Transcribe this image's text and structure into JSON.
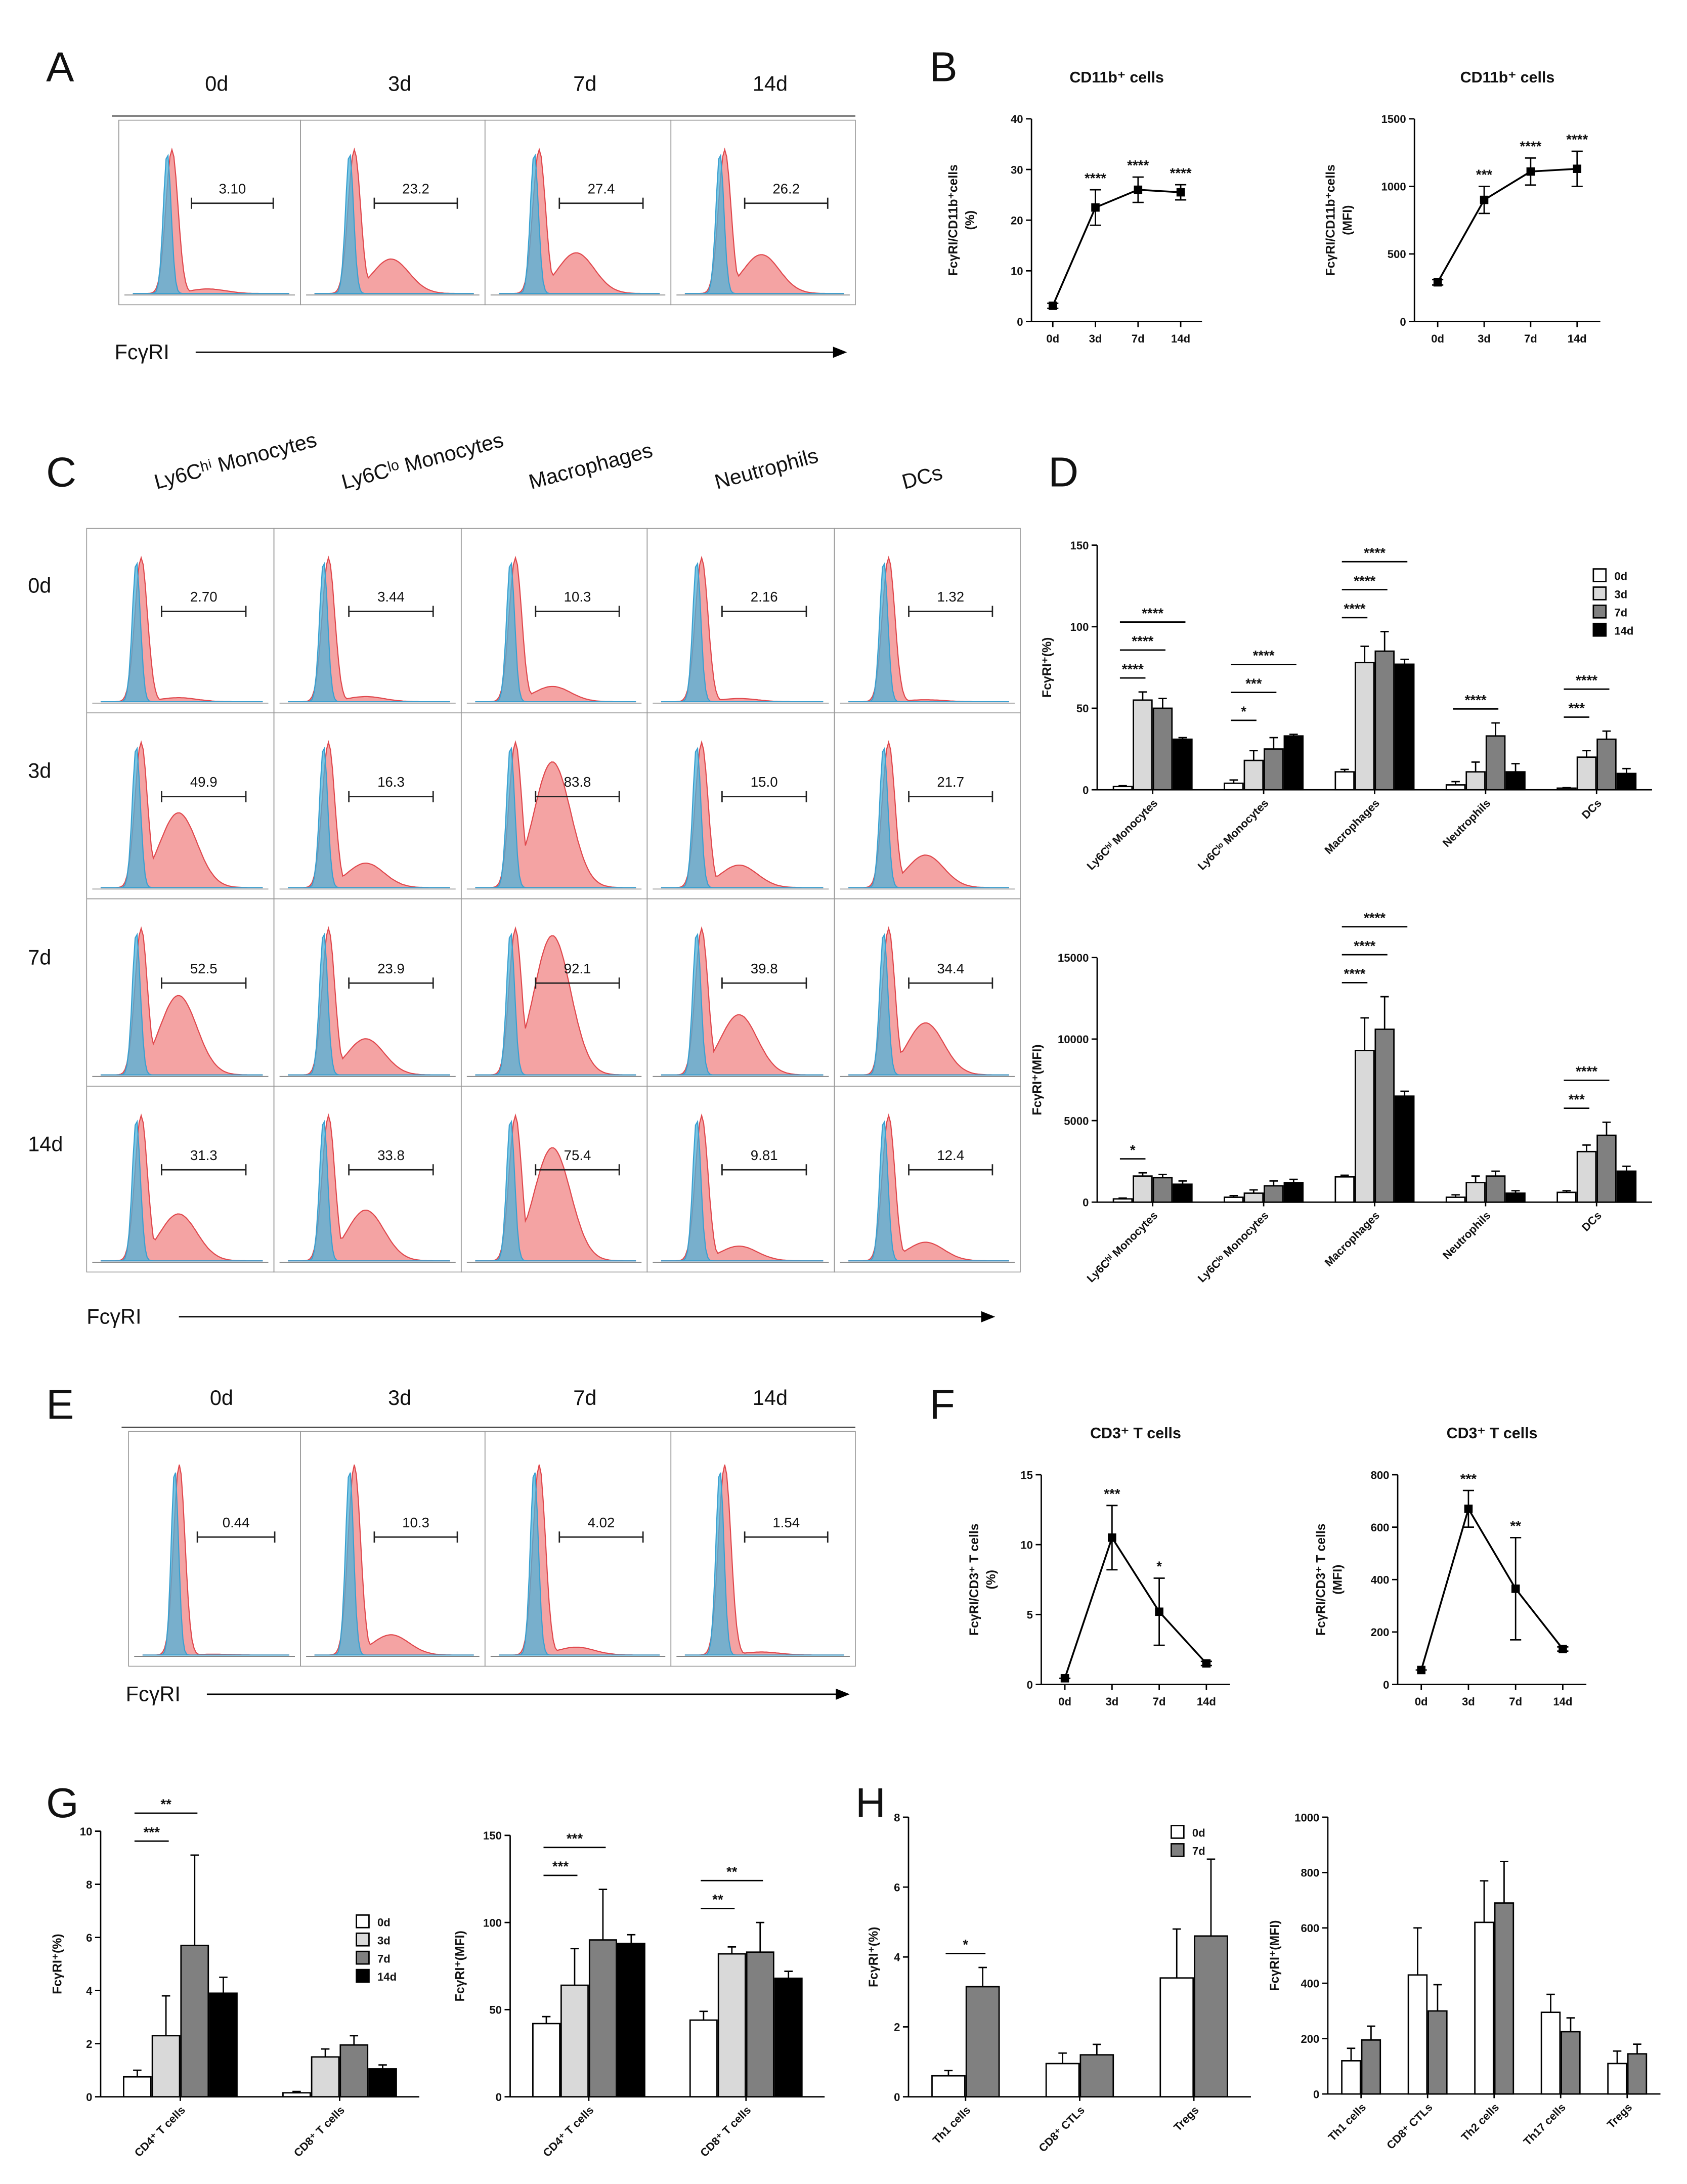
{
  "panel_letters": [
    "A",
    "B",
    "C",
    "D",
    "E",
    "F",
    "G",
    "H"
  ],
  "flow_A": {
    "columns": [
      "0d",
      "3d",
      "7d",
      "14d"
    ],
    "gates": [
      "3.10",
      "23.2",
      "27.4",
      "26.2"
    ],
    "axis_label": "FcγRI"
  },
  "flow_C": {
    "columns": [
      "Ly6Cʰⁱ Monocytes",
      "Ly6Cˡᵒ Monocytes",
      "Macrophages",
      "Neutrophils",
      "DCs"
    ],
    "rows": [
      "0d",
      "3d",
      "7d",
      "14d"
    ],
    "gates": [
      [
        "2.70",
        "3.44",
        "10.3",
        "2.16",
        "1.32"
      ],
      [
        "49.9",
        "16.3",
        "83.8",
        "15.0",
        "21.7"
      ],
      [
        "52.5",
        "23.9",
        "92.1",
        "39.8",
        "34.4"
      ],
      [
        "31.3",
        "33.8",
        "75.4",
        "9.81",
        "12.4"
      ]
    ],
    "axis_label": "FcγRI"
  },
  "flow_E": {
    "columns": [
      "0d",
      "3d",
      "7d",
      "14d"
    ],
    "gates": [
      "0.44",
      "10.3",
      "4.02",
      "1.54"
    ],
    "axis_label": "FcγRI"
  },
  "chart_data": [
    {
      "type": "line",
      "title": "CD11b⁺ cells",
      "y_label": [
        "FcγRI/CD11b⁺cells",
        "(%)"
      ],
      "categories": [
        "0d",
        "3d",
        "7d",
        "14d"
      ],
      "values": [
        3.1,
        22.5,
        26,
        25.5
      ],
      "errors": [
        0.5,
        3.5,
        2.5,
        1.5
      ],
      "significance": [
        null,
        "****",
        "****",
        "****"
      ],
      "color": "#000000",
      "ylim": [
        0,
        40
      ],
      "yticks": [
        0,
        10,
        20,
        30,
        40
      ]
    },
    {
      "type": "line",
      "title": "CD11b⁺ cells",
      "y_label": [
        "FcγRI/CD11b⁺cells",
        "(MFI)"
      ],
      "categories": [
        "0d",
        "3d",
        "7d",
        "14d"
      ],
      "values": [
        290,
        900,
        1110,
        1130
      ],
      "errors": [
        20,
        100,
        100,
        130
      ],
      "significance": [
        null,
        "***",
        "****",
        "****"
      ],
      "color": "#000000",
      "ylim": [
        0,
        1500
      ],
      "yticks": [
        0,
        500,
        1000,
        1500
      ]
    },
    {
      "type": "bar",
      "y_label": "FcγRI⁺(%)",
      "categories": [
        "Ly6Cʰⁱ Monocytes",
        "Ly6Cˡᵒ Monocytes",
        "Macrophages",
        "Neutrophils",
        "DCs"
      ],
      "series": [
        {
          "name": "0d",
          "color": "#ffffff",
          "values": [
            2,
            4,
            11,
            3,
            1
          ],
          "errors": [
            0.5,
            2,
            1.5,
            2,
            0.3
          ]
        },
        {
          "name": "3d",
          "color": "#d9d9d9",
          "values": [
            55,
            18,
            78,
            11,
            20
          ],
          "errors": [
            5,
            6,
            10,
            6,
            4
          ]
        },
        {
          "name": "7d",
          "color": "#808080",
          "values": [
            50,
            25,
            85,
            33,
            31
          ],
          "errors": [
            6,
            7,
            12,
            8,
            5
          ]
        },
        {
          "name": "14d",
          "color": "#000000",
          "values": [
            31,
            33,
            77,
            11,
            10
          ],
          "errors": [
            1,
            1,
            3,
            5,
            3
          ]
        }
      ],
      "significance": [
        [
          {
            "vs": "3d",
            "label": "****"
          },
          {
            "vs": "7d",
            "label": "****"
          },
          {
            "vs": "14d",
            "label": "****"
          }
        ],
        [
          {
            "vs": "3d",
            "label": "*"
          },
          {
            "vs": "7d",
            "label": "***"
          },
          {
            "vs": "14d",
            "label": "****"
          }
        ],
        [
          {
            "vs": "3d",
            "label": "****"
          },
          {
            "vs": "7d",
            "label": "****"
          },
          {
            "vs": "14d",
            "label": "****"
          }
        ],
        [
          {
            "vs": "7d",
            "label": "****"
          }
        ],
        [
          {
            "vs": "3d",
            "label": "***"
          },
          {
            "vs": "7d",
            "label": "****"
          }
        ]
      ],
      "ylim": [
        0,
        150
      ],
      "yticks": [
        0,
        50,
        100,
        150
      ],
      "legend": "upper right"
    },
    {
      "type": "bar",
      "y_label": "FcγRI⁺(MFI)",
      "categories": [
        "Ly6Cʰⁱ Monocytes",
        "Ly6Cˡᵒ Monocytes",
        "Macrophages",
        "Neutrophils",
        "DCs"
      ],
      "series": [
        {
          "name": "0d",
          "color": "#ffffff",
          "values": [
            200,
            300,
            1550,
            300,
            600
          ],
          "errors": [
            50,
            100,
            100,
            150,
            100
          ]
        },
        {
          "name": "3d",
          "color": "#d9d9d9",
          "values": [
            1600,
            550,
            9300,
            1200,
            3100
          ],
          "errors": [
            200,
            200,
            2000,
            400,
            400
          ]
        },
        {
          "name": "7d",
          "color": "#808080",
          "values": [
            1500,
            1000,
            10600,
            1600,
            4100
          ],
          "errors": [
            200,
            300,
            2000,
            300,
            800
          ]
        },
        {
          "name": "14d",
          "color": "#000000",
          "values": [
            1100,
            1200,
            6500,
            550,
            1900
          ],
          "errors": [
            200,
            200,
            300,
            150,
            300
          ]
        }
      ],
      "significance": [
        [
          {
            "vs": "3d",
            "label": "*"
          }
        ],
        [],
        [
          {
            "vs": "3d",
            "label": "****"
          },
          {
            "vs": "7d",
            "label": "****"
          },
          {
            "vs": "14d",
            "label": "****"
          }
        ],
        [],
        [
          {
            "vs": "3d",
            "label": "***"
          },
          {
            "vs": "7d",
            "label": "****"
          }
        ]
      ],
      "ylim": [
        0,
        15000
      ],
      "yticks": [
        0,
        5000,
        10000,
        15000
      ]
    },
    {
      "type": "line",
      "title": "CD3⁺ T cells",
      "y_label": [
        "FcγRI/CD3⁺ T cells",
        "(%)"
      ],
      "categories": [
        "0d",
        "3d",
        "7d",
        "14d"
      ],
      "values": [
        0.44,
        10.5,
        5.2,
        1.5
      ],
      "errors": [
        0,
        2.3,
        2.4,
        0.15
      ],
      "significance": [
        null,
        "***",
        "*",
        null
      ],
      "color": "#000000",
      "ylim": [
        0,
        15
      ],
      "yticks": [
        0,
        5,
        10,
        15
      ]
    },
    {
      "type": "line",
      "title": "CD3⁺ T cells",
      "y_label": [
        "FcγRI/CD3⁺ T cells",
        "(MFI)"
      ],
      "categories": [
        "0d",
        "3d",
        "7d",
        "14d"
      ],
      "values": [
        55,
        670,
        365,
        135
      ],
      "errors": [
        0,
        70,
        195,
        8
      ],
      "significance": [
        null,
        "***",
        "**",
        null
      ],
      "color": "#000000",
      "ylim": [
        0,
        800
      ],
      "yticks": [
        0,
        200,
        400,
        600,
        800
      ]
    },
    {
      "type": "bar",
      "y_label": "FcγRI⁺(%)",
      "categories": [
        "CD4⁺ T cells",
        "CD8⁺ T cells"
      ],
      "series": [
        {
          "name": "0d",
          "color": "#ffffff",
          "values": [
            0.75,
            0.15
          ],
          "errors": [
            0.25,
            0.05
          ]
        },
        {
          "name": "3d",
          "color": "#d9d9d9",
          "values": [
            2.3,
            1.5
          ],
          "errors": [
            1.5,
            0.3
          ]
        },
        {
          "name": "7d",
          "color": "#808080",
          "values": [
            5.7,
            1.95
          ],
          "errors": [
            3.4,
            0.35
          ]
        },
        {
          "name": "14d",
          "color": "#000000",
          "values": [
            3.9,
            1.05
          ],
          "errors": [
            0.6,
            0.15
          ]
        }
      ],
      "significance": [
        [
          {
            "vs": "3d",
            "label": "***"
          },
          {
            "vs": "7d",
            "label": "**"
          }
        ],
        []
      ],
      "ylim": [
        0,
        10
      ],
      "yticks": [
        0,
        2,
        4,
        6,
        8,
        10
      ],
      "legend": "upper right"
    },
    {
      "type": "bar",
      "y_label": "FcγRI⁺(MFI)",
      "categories": [
        "CD4⁺ T cells",
        "CD8⁺ T cells"
      ],
      "series": [
        {
          "name": "0d",
          "color": "#ffffff",
          "values": [
            42,
            44
          ],
          "errors": [
            4,
            5
          ]
        },
        {
          "name": "3d",
          "color": "#d9d9d9",
          "values": [
            64,
            82
          ],
          "errors": [
            21,
            4
          ]
        },
        {
          "name": "7d",
          "color": "#808080",
          "values": [
            90,
            83
          ],
          "errors": [
            29,
            17
          ]
        },
        {
          "name": "14d",
          "color": "#000000",
          "values": [
            88,
            68
          ],
          "errors": [
            5,
            4
          ]
        }
      ],
      "significance": [
        [
          {
            "vs": "3d",
            "label": "***"
          },
          {
            "vs": "7d",
            "label": "***"
          }
        ],
        [
          {
            "vs": "3d",
            "label": "**"
          },
          {
            "vs": "7d",
            "label": "**"
          }
        ]
      ],
      "ylim": [
        0,
        150
      ],
      "yticks": [
        0,
        50,
        100,
        150
      ]
    },
    {
      "type": "bar",
      "y_label": "FcγRI⁺(%)",
      "categories": [
        "Th1 cells",
        "CD8⁺ CTLs",
        "Tregs"
      ],
      "series": [
        {
          "name": "0d",
          "color": "#ffffff",
          "values": [
            0.6,
            0.95,
            3.4
          ],
          "errors": [
            0.15,
            0.3,
            1.4
          ]
        },
        {
          "name": "7d",
          "color": "#808080",
          "values": [
            3.15,
            1.2,
            4.6
          ],
          "errors": [
            0.55,
            0.3,
            2.2
          ]
        }
      ],
      "significance": [
        [
          {
            "vs": "7d",
            "label": "*"
          }
        ],
        [],
        []
      ],
      "ylim": [
        0,
        8
      ],
      "yticks": [
        0,
        2,
        4,
        6,
        8
      ],
      "legend": "upper right"
    },
    {
      "type": "bar",
      "y_label": "FcγRI⁺(MFI)",
      "categories": [
        "Th1 cells",
        "CD8⁺ CTLs",
        "Th2 cells",
        "Th17 cells",
        "Tregs"
      ],
      "series": [
        {
          "name": "0d",
          "color": "#ffffff",
          "values": [
            120,
            430,
            620,
            295,
            110
          ],
          "errors": [
            45,
            170,
            150,
            65,
            45
          ]
        },
        {
          "name": "7d",
          "color": "#808080",
          "values": [
            195,
            300,
            690,
            225,
            145
          ],
          "errors": [
            50,
            95,
            150,
            50,
            35
          ]
        }
      ],
      "significance": [
        [],
        [],
        [],
        [],
        []
      ],
      "ylim": [
        0,
        1000
      ],
      "yticks": [
        0,
        200,
        400,
        600,
        800,
        1000
      ]
    }
  ]
}
